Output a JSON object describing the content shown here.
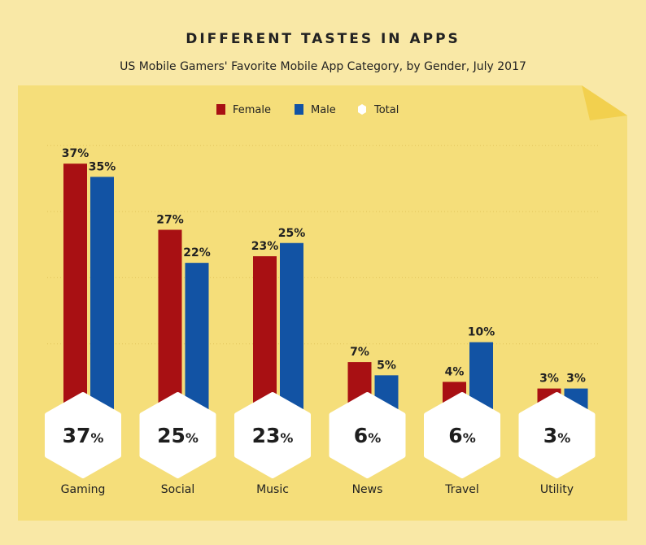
{
  "chart_data": {
    "type": "bar",
    "title": "DIFFERENT TASTES IN APPS",
    "subtitle": "US Mobile Gamers' Favorite Mobile App Category, by Gender, July 2017",
    "categories": [
      "Gaming",
      "Social",
      "Music",
      "News",
      "Travel",
      "Utility"
    ],
    "series": [
      {
        "name": "Female",
        "color": "#a81013",
        "values": [
          37,
          27,
          23,
          7,
          4,
          3
        ]
      },
      {
        "name": "Male",
        "color": "#1253a4",
        "values": [
          35,
          22,
          25,
          5,
          10,
          3
        ]
      },
      {
        "name": "Total",
        "color": "#ffffff",
        "values": [
          37,
          25,
          23,
          6,
          6,
          3
        ]
      }
    ],
    "ylim": [
      0,
      40
    ],
    "grid": true,
    "legend": "top-center",
    "value_suffix": "%"
  }
}
